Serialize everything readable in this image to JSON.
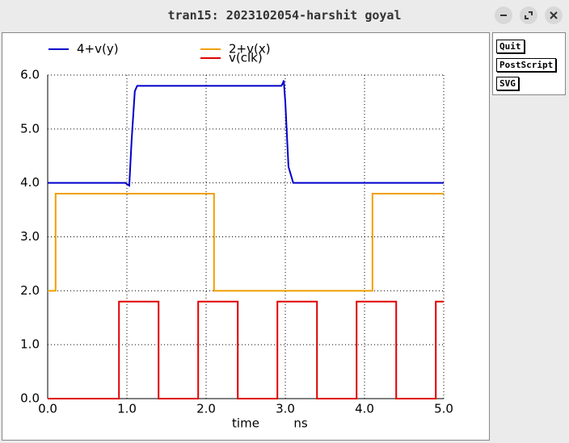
{
  "window": {
    "title": "tran15: 2023102054-harshit goyal",
    "buttons": [
      "Quit",
      "PostScript",
      "SVG"
    ]
  },
  "chart_data": {
    "type": "line",
    "xlabel": "time",
    "xunit": "ns",
    "xlim": [
      0,
      5
    ],
    "ylim": [
      0,
      6
    ],
    "xticks": [
      {
        "value": 0,
        "label": "0.0"
      },
      {
        "value": 1,
        "label": "1.0"
      },
      {
        "value": 2,
        "label": "2.0"
      },
      {
        "value": 3,
        "label": "3.0"
      },
      {
        "value": 4,
        "label": "4.0"
      },
      {
        "value": 5,
        "label": "5.0"
      }
    ],
    "yticks": [
      {
        "value": 0,
        "label": "0.0"
      },
      {
        "value": 1,
        "label": "1.0"
      },
      {
        "value": 2,
        "label": "2.0"
      },
      {
        "value": 3,
        "label": "3.0"
      },
      {
        "value": 4,
        "label": "4.0"
      },
      {
        "value": 5,
        "label": "5.0"
      },
      {
        "value": 6,
        "label": "6.0"
      }
    ],
    "grid": true,
    "series": [
      {
        "name": "4+v(y)",
        "color": "#0000cc",
        "x": [
          0,
          0.98,
          1.03,
          1.06,
          1.1,
          1.13,
          2.95,
          2.97,
          2.98,
          3.0,
          3.04,
          3.1,
          5.0
        ],
        "values": [
          4,
          4,
          3.95,
          4.8,
          5.7,
          5.8,
          5.8,
          5.85,
          5.9,
          5.5,
          4.3,
          4,
          4
        ]
      },
      {
        "name": "2+v(x)",
        "color": "#f0a000",
        "x": [
          0,
          0.1,
          0.1,
          2.1,
          2.1,
          4.1,
          4.1,
          5.0
        ],
        "values": [
          2,
          2,
          3.8,
          3.8,
          2,
          2,
          3.8,
          3.8
        ]
      },
      {
        "name": "v(clk)",
        "color": "#e00000",
        "x": [
          0,
          0.9,
          0.9,
          1.4,
          1.4,
          1.9,
          1.9,
          2.4,
          2.4,
          2.9,
          2.9,
          3.4,
          3.4,
          3.9,
          3.9,
          4.4,
          4.4,
          4.9,
          4.9,
          5.0
        ],
        "values": [
          0,
          0,
          1.8,
          1.8,
          0,
          0,
          1.8,
          1.8,
          0,
          0,
          1.8,
          1.8,
          0,
          0,
          1.8,
          1.8,
          0,
          0,
          1.8,
          1.8
        ]
      }
    ]
  }
}
